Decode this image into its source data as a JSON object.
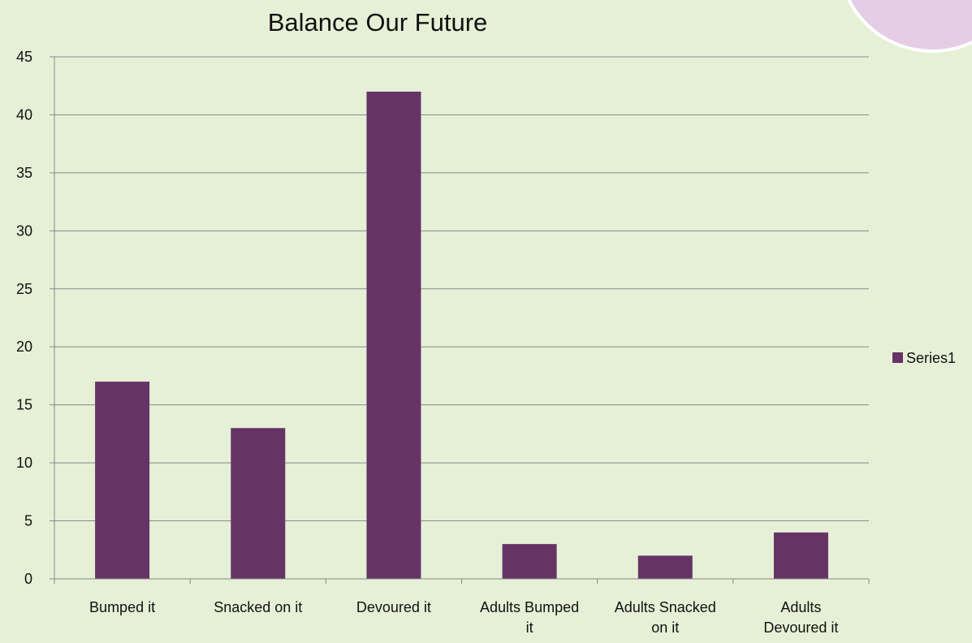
{
  "chart_data": {
    "type": "bar",
    "title": "Balance Our Future",
    "xlabel": "",
    "ylabel": "",
    "categories": [
      [
        "Bumped it"
      ],
      [
        "Snacked on it"
      ],
      [
        "Devoured it"
      ],
      [
        "Adults Bumped",
        "it"
      ],
      [
        "Adults Snacked",
        "on it"
      ],
      [
        "Adults",
        "Devoured it"
      ]
    ],
    "series": [
      {
        "name": "Series1",
        "values": [
          17,
          13,
          42,
          3,
          2,
          4
        ],
        "color": "#663366"
      }
    ],
    "ylim": [
      0,
      45
    ],
    "yticks": [
      0,
      5,
      10,
      15,
      20,
      25,
      30,
      35,
      40,
      45
    ],
    "grid": true,
    "legend": "right"
  },
  "decoration": {
    "corner_shape": "circle",
    "corner_color": "#e6cde6"
  }
}
